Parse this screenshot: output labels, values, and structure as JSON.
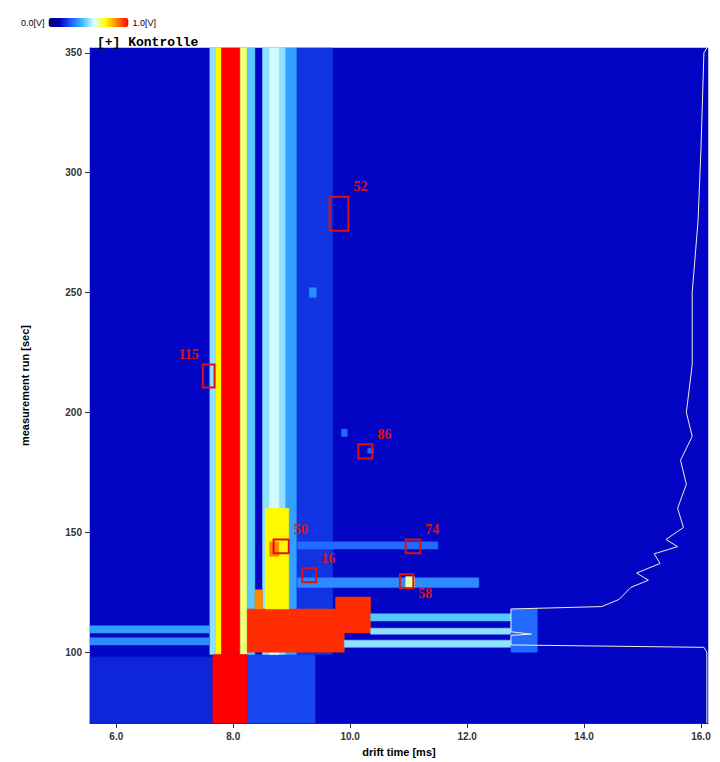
{
  "chart_data": {
    "type": "heatmap",
    "title": "[+] Kontrolle",
    "x_label": "drift time [ms]",
    "y_label": "measurement run [sec]",
    "xlim": [
      5.55,
      16.12
    ],
    "xticks": [
      {
        "value": 6,
        "label": "6.0"
      },
      {
        "value": 8,
        "label": "8.0"
      },
      {
        "value": 10,
        "label": "10.0"
      },
      {
        "value": 12,
        "label": "12.0"
      },
      {
        "value": 14,
        "label": "14.0"
      },
      {
        "value": 16,
        "label": "16.0"
      }
    ],
    "ylim": [
      70.4,
      352
    ],
    "yticks": [
      100,
      150,
      200,
      250,
      300,
      350
    ],
    "grid": false,
    "colorbar": {
      "range": [
        0,
        1
      ],
      "ticks": [
        {
          "value": 0,
          "label": "0.0[V]"
        },
        {
          "value": 1,
          "label": "1.0[V]"
        }
      ],
      "colors": [
        "#000060",
        "#0000c0",
        "#2060ff",
        "#40c0ff",
        "#e0ffff",
        "#ffff00",
        "#ff8000",
        "#ff0000"
      ]
    },
    "cells": [
      {
        "x": [
          5.55,
          16.12
        ],
        "y": [
          70.4,
          352
        ],
        "value": 0.15
      },
      {
        "x": [
          5.55,
          7.65
        ],
        "y": [
          70.4,
          98
        ],
        "value": 0.2
      },
      {
        "x": [
          8.24,
          9.4
        ],
        "y": [
          70.4,
          99
        ],
        "value": 0.25
      },
      {
        "x": [
          9.08,
          9.7
        ],
        "y": [
          99,
          352
        ],
        "value": 0.22
      },
      {
        "x": [
          7.6,
          7.7
        ],
        "y": [
          99,
          352
        ],
        "value": 0.5
      },
      {
        "x": [
          7.7,
          7.8
        ],
        "y": [
          99,
          352
        ],
        "value": 0.72
      },
      {
        "x": [
          7.8,
          8.12
        ],
        "y": [
          99,
          352
        ],
        "value": 1.0
      },
      {
        "x": [
          8.12,
          8.24
        ],
        "y": [
          99,
          352
        ],
        "value": 0.65
      },
      {
        "x": [
          8.24,
          8.37
        ],
        "y": [
          99,
          352
        ],
        "value": 0.45
      },
      {
        "x": [
          8.5,
          8.9
        ],
        "y": [
          99,
          352
        ],
        "value": 0.5
      },
      {
        "x": [
          8.62,
          8.78
        ],
        "y": [
          99,
          352
        ],
        "value": 0.56
      },
      {
        "x": [
          8.9,
          9.08
        ],
        "y": [
          99,
          352
        ],
        "value": 0.38
      },
      {
        "x": [
          7.65,
          8.24
        ],
        "y": [
          70.4,
          99
        ],
        "value": 1.0
      },
      {
        "x": [
          5.55,
          7.6
        ],
        "y": [
          103,
          106
        ],
        "value": 0.35
      },
      {
        "x": [
          5.55,
          7.6
        ],
        "y": [
          108,
          111
        ],
        "value": 0.38
      },
      {
        "x": [
          8.24,
          9.9
        ],
        "y": [
          100,
          118
        ],
        "value": 0.95
      },
      {
        "x": [
          9.75,
          10.35
        ],
        "y": [
          108,
          123
        ],
        "value": 0.95
      },
      {
        "x": [
          9.9,
          12.75
        ],
        "y": [
          102,
          105
        ],
        "value": 0.5
      },
      {
        "x": [
          10.35,
          12.75
        ],
        "y": [
          107.5,
          110
        ],
        "value": 0.5
      },
      {
        "x": [
          10.35,
          12.75
        ],
        "y": [
          113,
          116
        ],
        "value": 0.45
      },
      {
        "x": [
          12.75,
          13.2
        ],
        "y": [
          100,
          118
        ],
        "value": 0.3
      },
      {
        "x": [
          8.55,
          8.95
        ],
        "y": [
          118,
          160
        ],
        "value": 0.72
      },
      {
        "x": [
          8.37,
          8.5
        ],
        "y": [
          118,
          126
        ],
        "value": 0.85
      },
      {
        "x": [
          9.1,
          12.2
        ],
        "y": [
          127,
          131
        ],
        "value": 0.35
      },
      {
        "x": [
          10.95,
          11.1
        ],
        "y": [
          127,
          131.5
        ],
        "value": 0.62
      },
      {
        "x": [
          9.1,
          11.5
        ],
        "y": [
          143,
          146
        ],
        "value": 0.3
      },
      {
        "x": [
          9.3,
          9.42
        ],
        "y": [
          248,
          252
        ],
        "value": 0.35
      },
      {
        "x": [
          9.85,
          9.95
        ],
        "y": [
          190,
          193
        ],
        "value": 0.3
      },
      {
        "x": [
          10.3,
          10.4
        ],
        "y": [
          183,
          185
        ],
        "value": 0.3
      },
      {
        "x": [
          8.62,
          8.78
        ],
        "y": [
          140,
          146
        ],
        "value": 0.85
      }
    ],
    "profile": {
      "color": "#f0f0d8",
      "x": [
        16.1,
        16.1,
        16.05,
        12.75,
        12.75,
        13.1,
        12.75,
        12.75,
        14.3,
        14.6,
        14.8,
        15.1,
        14.9,
        15.3,
        15.2,
        15.6,
        15.4,
        15.7,
        15.6,
        15.75,
        15.65,
        15.85,
        15.75,
        15.85,
        15.85,
        15.95,
        16.0,
        16.05,
        16.1
      ],
      "y": [
        70.4,
        100,
        102,
        103,
        107,
        107.5,
        108.5,
        118,
        119,
        122,
        127,
        130,
        133,
        137,
        141,
        144,
        147,
        152,
        160,
        170,
        180,
        190,
        200,
        220,
        250,
        280,
        310,
        350,
        352
      ]
    },
    "annotations": [
      {
        "label": "52",
        "x": [
          9.65,
          9.97
        ],
        "y": [
          275.8,
          290
        ],
        "color": "#e01010"
      },
      {
        "label": "115",
        "x": [
          7.48,
          7.68
        ],
        "y": [
          210.4,
          220
        ],
        "color": "#e01010"
      },
      {
        "label": "86",
        "x": [
          10.14,
          10.38
        ],
        "y": [
          180.8,
          186.7
        ],
        "color": "#e01010"
      },
      {
        "label": "50",
        "x": [
          8.69,
          8.95
        ],
        "y": [
          141.3,
          147
        ],
        "color": "#e01010"
      },
      {
        "label": "74",
        "x": [
          10.95,
          11.2
        ],
        "y": [
          141.3,
          147
        ],
        "color": "#e01010"
      },
      {
        "label": "16",
        "x": [
          9.18,
          9.42
        ],
        "y": [
          129.2,
          135
        ],
        "color": "#e01010"
      },
      {
        "label": "58",
        "x": [
          10.85,
          11.08
        ],
        "y": [
          126.7,
          132.5
        ],
        "color": "#e01010"
      }
    ]
  }
}
